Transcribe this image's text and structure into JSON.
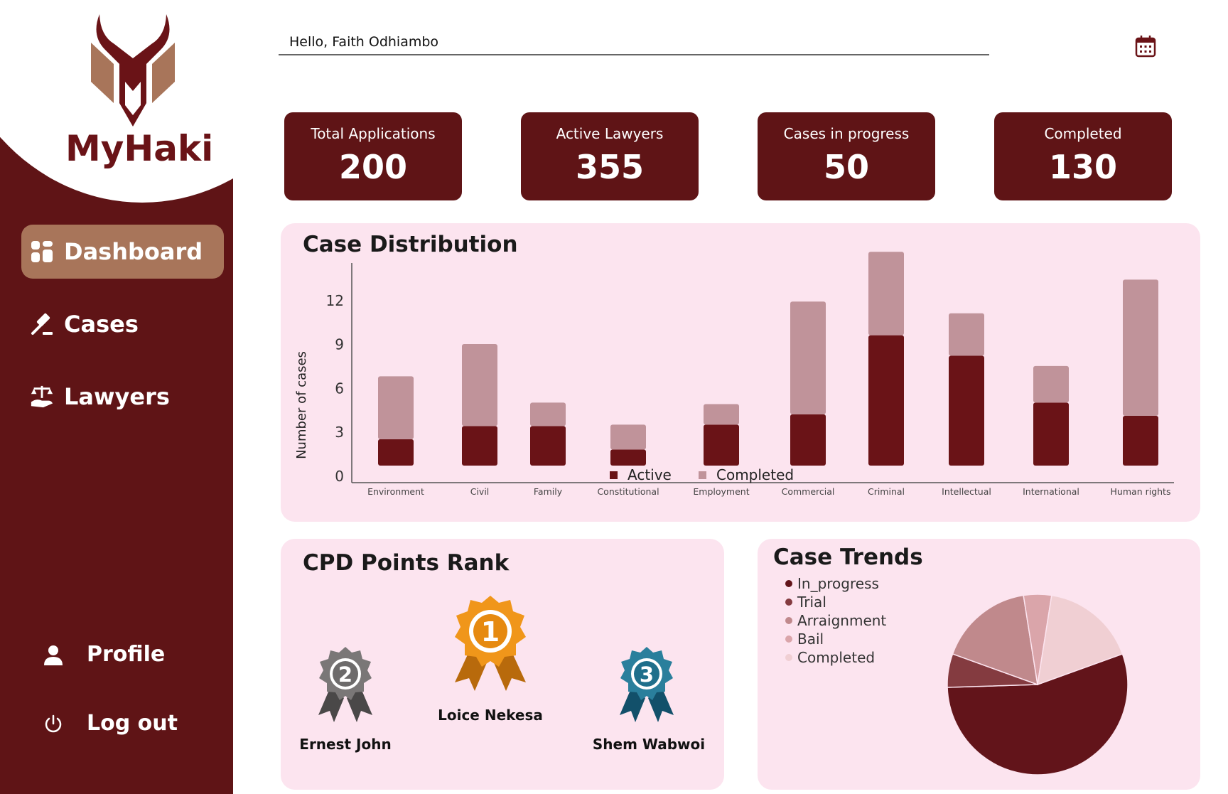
{
  "brand": {
    "name": "MyHaki"
  },
  "sidebar": {
    "items": [
      {
        "label": "Dashboard",
        "icon": "dashboard-icon",
        "active": true
      },
      {
        "label": "Cases",
        "icon": "gavel-icon",
        "active": false
      },
      {
        "label": "Lawyers",
        "icon": "scales-icon",
        "active": false
      }
    ],
    "bottom": [
      {
        "label": "Profile",
        "icon": "user-icon"
      },
      {
        "label": "Log out",
        "icon": "power-icon"
      }
    ]
  },
  "header": {
    "greeting": "Hello,  Faith Odhiambo",
    "calendar_icon": "calendar-icon"
  },
  "stats": [
    {
      "label": "Total Applications",
      "value": "200"
    },
    {
      "label": "Active Lawyers",
      "value": "355"
    },
    {
      "label": "Cases  in progress",
      "value": "50"
    },
    {
      "label": "Completed",
      "value": "130"
    }
  ],
  "colors": {
    "primary": "#5f1416",
    "accent": "#a8755a",
    "panel_bg": "#fce4ef",
    "active_bar": "#6a1317",
    "completed_bar": "#c0939a"
  },
  "case_distribution": {
    "title": "Case Distribution"
  },
  "chart_data": {
    "type": "bar",
    "stacked": true,
    "title": "Case Distribution",
    "xlabel": "",
    "ylabel": "Number of cases",
    "ylim": [
      0,
      15
    ],
    "yticks": [
      0,
      3,
      6,
      9,
      12
    ],
    "legend_position": "bottom-center",
    "grid": false,
    "categories": [
      "Environment",
      "Civil",
      "Family",
      "Constitutional",
      "Employment",
      "Commercial",
      "Criminal",
      "Intellectual",
      "International",
      "Human rights"
    ],
    "series": [
      {
        "name": "Active",
        "color": "#6a1317",
        "values": [
          1.8,
          2.7,
          2.7,
          1.1,
          2.8,
          3.5,
          8.9,
          7.5,
          4.3,
          3.4
        ]
      },
      {
        "name": "Completed",
        "color": "#c0939a",
        "values": [
          4.3,
          5.6,
          1.6,
          1.7,
          1.4,
          7.7,
          5.7,
          2.9,
          2.5,
          9.3
        ]
      }
    ]
  },
  "cpd": {
    "title": "CPD Points Rank",
    "ranks": [
      {
        "rank": "1",
        "name": "Loice Nekesa",
        "color": "#e08a12"
      },
      {
        "rank": "2",
        "name": "Ernest John",
        "color": "#6d6b6b"
      },
      {
        "rank": "3",
        "name": "Shem Wabwoi",
        "color": "#1f6f8b"
      }
    ]
  },
  "trends": {
    "title": "Case Trends",
    "type": "pie",
    "series": [
      {
        "name": "In_progress",
        "value": 55,
        "color": "#62141a"
      },
      {
        "name": "Trial",
        "value": 6,
        "color": "#843b40"
      },
      {
        "name": "Arraignment",
        "value": 17,
        "color": "#c0898c"
      },
      {
        "name": "Bail",
        "value": 5,
        "color": "#daa5aa"
      },
      {
        "name": "Completed",
        "value": 17,
        "color": "#f0cfd3"
      }
    ]
  }
}
